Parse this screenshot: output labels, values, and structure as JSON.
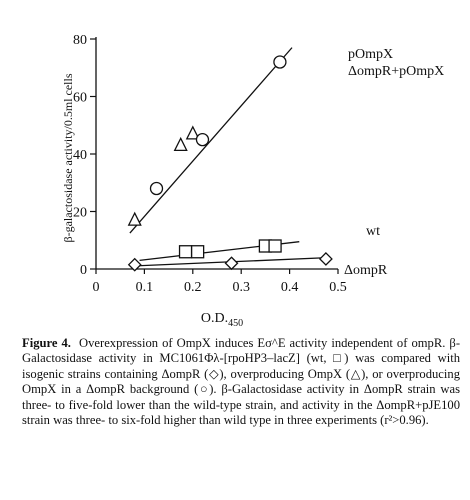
{
  "chart_data": {
    "type": "scatter",
    "xlabel_main": "O.D.",
    "xlabel_sub": "450",
    "ylabel": "β-galactosidase activity/0.5ml cells",
    "xlim": [
      0,
      0.5
    ],
    "ylim": [
      0,
      80
    ],
    "xticks": [
      0,
      0.1,
      0.2,
      0.3,
      0.4,
      0.5
    ],
    "xtick_labels": [
      "0",
      "0.1",
      "0.2",
      "0.3",
      "0.4",
      "0.5"
    ],
    "yticks": [
      0,
      20,
      40,
      60,
      80
    ],
    "ytick_labels": [
      "0",
      "20",
      "40",
      "60",
      "80"
    ],
    "grid": false,
    "series": [
      {
        "name": "pOmpX",
        "marker": "triangle",
        "points": [
          [
            0.08,
            17
          ],
          [
            0.175,
            43
          ],
          [
            0.2,
            47
          ]
        ],
        "fit": [
          [
            0.07,
            12.5
          ],
          [
            0.405,
            77
          ]
        ]
      },
      {
        "name": "ΔompR+pOmpX",
        "marker": "circle",
        "points": [
          [
            0.125,
            28
          ],
          [
            0.22,
            45
          ],
          [
            0.38,
            72
          ]
        ],
        "fit": null
      },
      {
        "name": "wt",
        "marker": "square",
        "points": [
          [
            0.185,
            6
          ],
          [
            0.21,
            6
          ],
          [
            0.35,
            8
          ],
          [
            0.37,
            8
          ]
        ],
        "fit": [
          [
            0.09,
            3
          ],
          [
            0.42,
            9.5
          ]
        ]
      },
      {
        "name": "ΔompR",
        "marker": "diamond",
        "points": [
          [
            0.08,
            1.5
          ],
          [
            0.28,
            2
          ],
          [
            0.475,
            3.5
          ]
        ],
        "fit": [
          [
            0.07,
            1
          ],
          [
            0.485,
            4
          ]
        ]
      }
    ]
  },
  "caption": {
    "label": "Figure 4.",
    "text": "Overexpression of OmpX induces Eσ^E activity independent of ompR. β-Galactosidase activity in MC1061Φλ-[rpoHP3–lacZ] (wt, □) was compared with isogenic strains containing ΔompR (◇), overproducing OmpX (△), or overproducing OmpX in a ΔompR background (○). β-Galactosidase activity in ΔompR strain was three- to five-fold lower than the wild-type strain, and activity in the ΔompR+pJE100 strain was three- to six-fold higher than wild type in three experiments (r²>0.96)."
  }
}
